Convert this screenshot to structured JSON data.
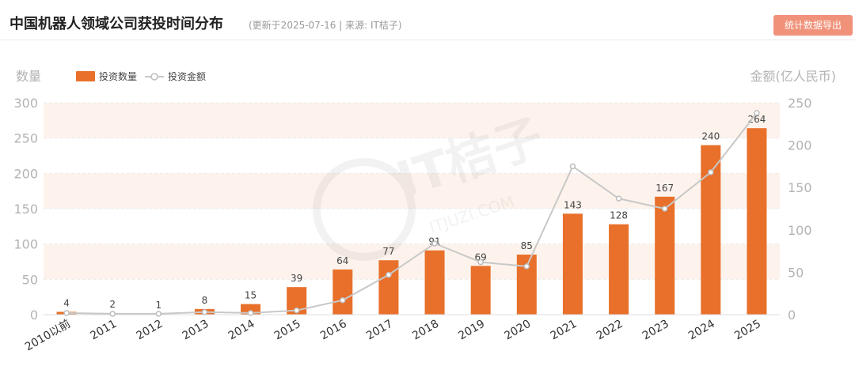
{
  "header": {
    "title": "中国机器人领域公司获投时间分布",
    "meta": "(更新于2025-07-16 | 来源: IT桔子)",
    "export_label": "统计数据导出"
  },
  "watermark": {
    "brand": "IT桔子",
    "url": "ITJUZI.COM"
  },
  "chart_data": {
    "type": "bar+line",
    "y_left_label": "数量",
    "y_right_label": "金额(亿人民币)",
    "ylim_left": [
      0,
      300
    ],
    "ylim_right": [
      0,
      250
    ],
    "y_left_ticks": [
      0,
      50,
      100,
      150,
      200,
      250,
      300
    ],
    "y_right_ticks": [
      0,
      50,
      100,
      150,
      200,
      250
    ],
    "legend_position": "top-left",
    "categories": [
      "2010以前",
      "2011",
      "2012",
      "2013",
      "2014",
      "2015",
      "2016",
      "2017",
      "2018",
      "2019",
      "2020",
      "2021",
      "2022",
      "2023",
      "2024",
      "2025"
    ],
    "series": [
      {
        "name": "投资数量",
        "kind": "bar",
        "axis": "left",
        "color": "#e8702a",
        "values": [
          4,
          2,
          1,
          8,
          15,
          39,
          64,
          77,
          91,
          69,
          85,
          143,
          128,
          167,
          240,
          264
        ]
      },
      {
        "name": "投资金额",
        "kind": "line",
        "axis": "right",
        "color": "#c8c8c8",
        "values": [
          2,
          1,
          1,
          3,
          2,
          5,
          17,
          47,
          84,
          62,
          57,
          175,
          137,
          125,
          168,
          238
        ]
      }
    ],
    "band_color": "#fdf3ec"
  }
}
